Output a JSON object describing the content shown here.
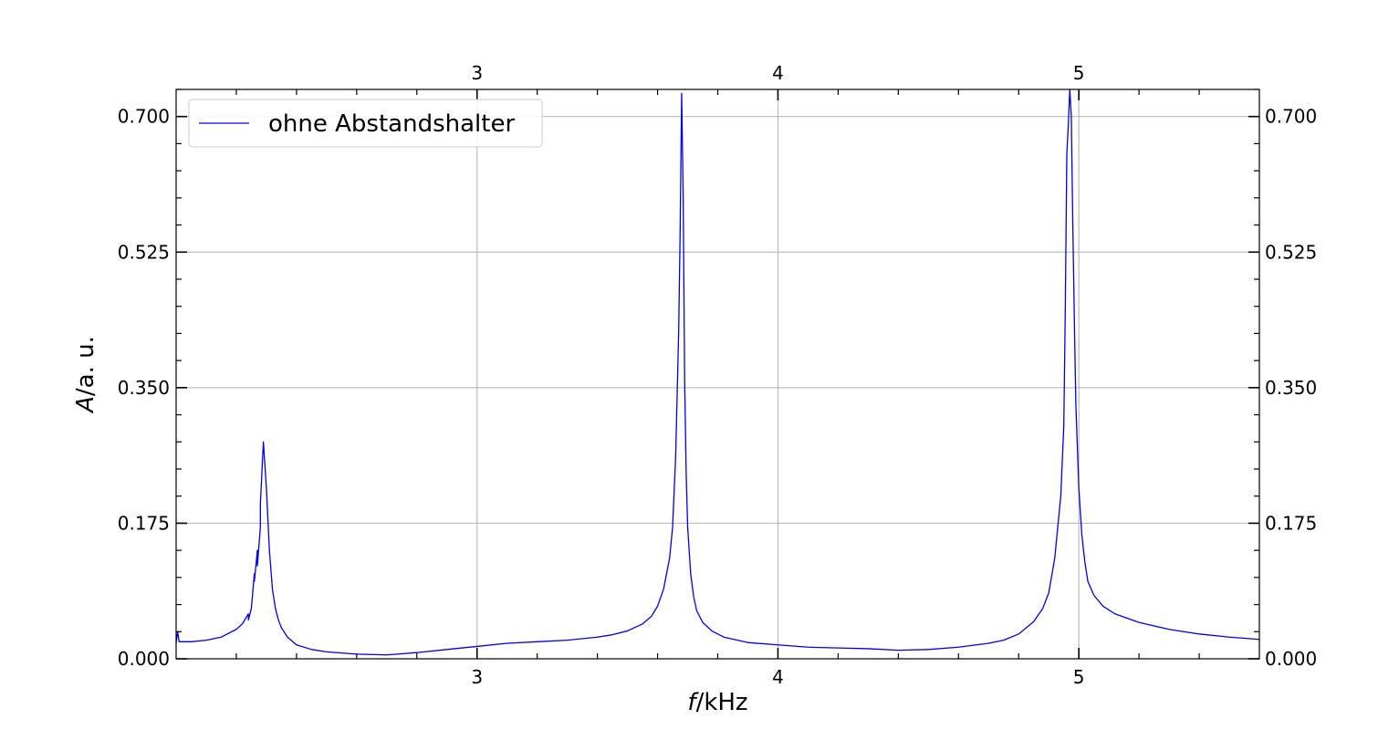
{
  "chart_data": {
    "type": "line",
    "title": "",
    "xlabel_italic": "f",
    "xlabel_rest": "/kHz",
    "ylabel_italic": "A",
    "ylabel_rest": "/a. u.",
    "xlim": [
      2.0,
      5.6
    ],
    "ylim": [
      0.0,
      0.735
    ],
    "x_major_ticks": [
      3,
      4,
      5
    ],
    "x_tick_labels": [
      "3",
      "4",
      "5"
    ],
    "x_minor_step": 0.2,
    "y_major_ticks": [
      0.0,
      0.175,
      0.35,
      0.525,
      0.7
    ],
    "y_tick_labels": [
      "0.000",
      "0.175",
      "0.350",
      "0.525",
      "0.700"
    ],
    "y_minor_step": 0.035,
    "grid": true,
    "legend_position": "top-left",
    "line_color": "#0000ee",
    "series": [
      {
        "name": "ohne Abstandshalter",
        "x": [
          2.0,
          2.005,
          2.01,
          2.015,
          2.05,
          2.1,
          2.15,
          2.2,
          2.22,
          2.24,
          2.24,
          2.25,
          2.26,
          2.26,
          2.27,
          2.27,
          2.28,
          2.28,
          2.29,
          2.3,
          2.31,
          2.32,
          2.33,
          2.34,
          2.35,
          2.37,
          2.4,
          2.45,
          2.5,
          2.6,
          2.7,
          2.8,
          2.9,
          3.0,
          3.1,
          3.2,
          3.3,
          3.4,
          3.45,
          3.5,
          3.55,
          3.58,
          3.6,
          3.62,
          3.64,
          3.65,
          3.66,
          3.67,
          3.675,
          3.68,
          3.685,
          3.69,
          3.695,
          3.7,
          3.71,
          3.72,
          3.73,
          3.75,
          3.78,
          3.82,
          3.9,
          4.0,
          4.1,
          4.2,
          4.3,
          4.4,
          4.5,
          4.6,
          4.7,
          4.75,
          4.8,
          4.85,
          4.88,
          4.9,
          4.92,
          4.94,
          4.95,
          4.955,
          4.96,
          4.965,
          4.97,
          4.975,
          4.98,
          4.985,
          4.99,
          5.0,
          5.01,
          5.02,
          5.03,
          5.05,
          5.08,
          5.12,
          5.2,
          5.3,
          5.4,
          5.5,
          5.6
        ],
        "y": [
          0.02,
          0.035,
          0.022,
          0.022,
          0.022,
          0.024,
          0.028,
          0.038,
          0.045,
          0.058,
          0.05,
          0.065,
          0.11,
          0.1,
          0.14,
          0.12,
          0.17,
          0.2,
          0.28,
          0.22,
          0.14,
          0.09,
          0.065,
          0.05,
          0.04,
          0.028,
          0.018,
          0.012,
          0.009,
          0.006,
          0.005,
          0.008,
          0.012,
          0.016,
          0.02,
          0.022,
          0.024,
          0.028,
          0.031,
          0.036,
          0.045,
          0.055,
          0.068,
          0.09,
          0.13,
          0.17,
          0.26,
          0.42,
          0.55,
          0.73,
          0.6,
          0.36,
          0.24,
          0.17,
          0.11,
          0.08,
          0.062,
          0.047,
          0.036,
          0.028,
          0.021,
          0.018,
          0.015,
          0.014,
          0.013,
          0.011,
          0.012,
          0.015,
          0.02,
          0.024,
          0.032,
          0.048,
          0.065,
          0.085,
          0.13,
          0.21,
          0.3,
          0.45,
          0.65,
          0.69,
          0.735,
          0.7,
          0.56,
          0.44,
          0.33,
          0.22,
          0.16,
          0.125,
          0.1,
          0.082,
          0.068,
          0.058,
          0.047,
          0.038,
          0.032,
          0.028,
          0.025
        ]
      }
    ]
  }
}
